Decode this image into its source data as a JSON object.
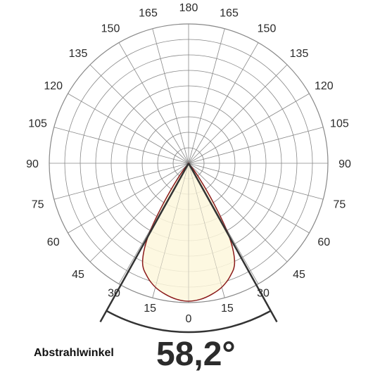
{
  "chart_data": {
    "type": "polar",
    "angle_labels": [
      "180",
      "165",
      "150",
      "135",
      "120",
      "105",
      "90",
      "75",
      "60",
      "45",
      "30",
      "15",
      "0"
    ],
    "angle_tick_step_deg": 15,
    "radial_rings": 9,
    "grid": true,
    "series": [
      {
        "values_deg_to_relative_intensity": [
          [
            0,
            1.0
          ],
          [
            5,
            0.99
          ],
          [
            10,
            0.965
          ],
          [
            15,
            0.93
          ],
          [
            20,
            0.875
          ],
          [
            25,
            0.79
          ],
          [
            29.1,
            0.6
          ],
          [
            32,
            0.35
          ],
          [
            36,
            0.12
          ],
          [
            40,
            0.0
          ]
        ]
      }
    ],
    "beam_angle_deg": 58.2,
    "colors": {
      "curve_stroke": "#8b1a1a",
      "curve_fill": "#fdf7dc",
      "grid": "#888888",
      "beam_lines": "#333333"
    }
  },
  "caption": "Abstrahlwinkel",
  "beam_angle_text": "58,2°"
}
